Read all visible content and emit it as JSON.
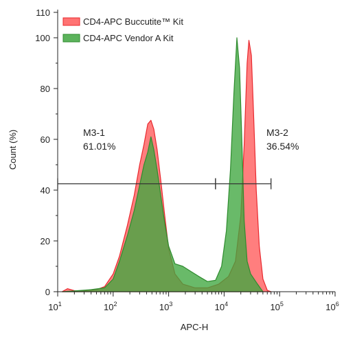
{
  "chart_data": {
    "type": "area",
    "title": "",
    "xlabel": "APC-H",
    "ylabel": "Count (%)",
    "x_scale": "log",
    "xlim": [
      10,
      1000000
    ],
    "ylim": [
      0,
      110
    ],
    "y_ticks": [
      0,
      20,
      40,
      60,
      80,
      100,
      110
    ],
    "x_ticks": [
      {
        "value": 10,
        "base": "10",
        "exp": "1"
      },
      {
        "value": 100,
        "base": "10",
        "exp": "2"
      },
      {
        "value": 1000,
        "base": "10",
        "exp": "3"
      },
      {
        "value": 10000,
        "base": "10",
        "exp": "4"
      },
      {
        "value": 100000,
        "base": "10",
        "exp": "5"
      },
      {
        "value": 1000000,
        "base": "10",
        "exp": "6"
      }
    ],
    "grid": false,
    "legend_position": "top-left",
    "series": [
      {
        "name": "CD4-APC Buccutite™ Kit",
        "fill": "#ff5a5a",
        "stroke": "#e8282e",
        "points": [
          [
            12,
            0
          ],
          [
            15,
            1.2
          ],
          [
            20,
            0.4
          ],
          [
            30,
            0.3
          ],
          [
            50,
            0.8
          ],
          [
            70,
            2
          ],
          [
            100,
            7
          ],
          [
            130,
            14
          ],
          [
            180,
            26
          ],
          [
            240,
            38
          ],
          [
            300,
            50
          ],
          [
            360,
            58
          ],
          [
            420,
            66
          ],
          [
            480,
            67.5
          ],
          [
            540,
            64
          ],
          [
            620,
            56
          ],
          [
            720,
            44
          ],
          [
            850,
            30
          ],
          [
            1000,
            17
          ],
          [
            1300,
            7
          ],
          [
            1800,
            3
          ],
          [
            3000,
            1.5
          ],
          [
            5000,
            1.5
          ],
          [
            8000,
            3
          ],
          [
            12000,
            6
          ],
          [
            16000,
            12
          ],
          [
            20000,
            30
          ],
          [
            23000,
            58
          ],
          [
            26000,
            90
          ],
          [
            28000,
            99
          ],
          [
            31000,
            93
          ],
          [
            34000,
            70
          ],
          [
            38000,
            40
          ],
          [
            43000,
            18
          ],
          [
            50000,
            5
          ],
          [
            60000,
            0.5
          ],
          [
            70000,
            0
          ]
        ]
      },
      {
        "name": "CD4-APC Vendor A Kit",
        "fill": "#3fa63f",
        "stroke": "#2e8b2e",
        "points": [
          [
            12,
            0
          ],
          [
            20,
            0.3
          ],
          [
            40,
            0.8
          ],
          [
            70,
            1.5
          ],
          [
            100,
            5
          ],
          [
            130,
            12
          ],
          [
            180,
            22
          ],
          [
            240,
            32
          ],
          [
            300,
            42
          ],
          [
            360,
            50
          ],
          [
            420,
            55
          ],
          [
            480,
            61
          ],
          [
            540,
            56
          ],
          [
            620,
            48
          ],
          [
            720,
            38
          ],
          [
            850,
            27
          ],
          [
            1000,
            18
          ],
          [
            1300,
            11
          ],
          [
            1800,
            10
          ],
          [
            2500,
            8
          ],
          [
            3500,
            6
          ],
          [
            5000,
            4
          ],
          [
            7000,
            4.5
          ],
          [
            9000,
            10
          ],
          [
            11000,
            24
          ],
          [
            13000,
            48
          ],
          [
            15000,
            78
          ],
          [
            17000,
            100
          ],
          [
            19000,
            88
          ],
          [
            21000,
            58
          ],
          [
            23000,
            28
          ],
          [
            26000,
            12
          ],
          [
            30000,
            7
          ],
          [
            40000,
            3
          ],
          [
            50000,
            0
          ]
        ]
      }
    ],
    "gates": [
      {
        "name": "M3-1",
        "percent": "61.01%",
        "x_start": 10,
        "x_end": 7000,
        "y": 42.5
      },
      {
        "name": "M3-2",
        "percent": "36.54%",
        "x_start": 7000,
        "x_end": 70000,
        "y": 42.5
      }
    ]
  }
}
